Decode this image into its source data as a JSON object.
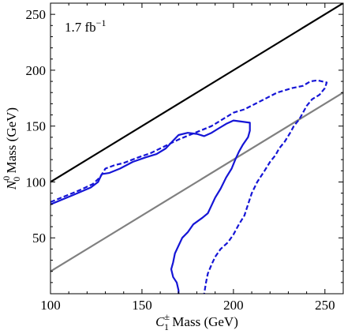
{
  "chart_data": {
    "type": "line",
    "xlabel": {
      "main": "C",
      "sub": "1",
      "sup": "±",
      "rest": " Mass (GeV)"
    },
    "ylabel": {
      "main": "N",
      "sub": "0",
      "sup": "0",
      "rest": " Mass (GeV)"
    },
    "annotation": {
      "text": "1.7 fb",
      "sup": "−1"
    },
    "xlim": [
      100,
      260
    ],
    "ylim": [
      0,
      260
    ],
    "x_ticks": [
      100,
      150,
      200,
      250
    ],
    "y_ticks": [
      50,
      100,
      150,
      200,
      250
    ],
    "grid": false,
    "colors": {
      "black_line": "#000000",
      "gray_line": "#808080",
      "contour": "#1515d6"
    },
    "lines": [
      {
        "id": "black",
        "color": "#000000",
        "points": [
          [
            100,
            100
          ],
          [
            260,
            260
          ]
        ]
      },
      {
        "id": "gray",
        "color": "#808080",
        "points": [
          [
            100,
            20
          ],
          [
            260,
            180
          ]
        ]
      }
    ],
    "series": [
      {
        "id": "solid-contour",
        "style": "solid",
        "color": "#1515d6",
        "points": [
          [
            100,
            80
          ],
          [
            112,
            88
          ],
          [
            122,
            95
          ],
          [
            126,
            100
          ],
          [
            128,
            107
          ],
          [
            132,
            108
          ],
          [
            138,
            112
          ],
          [
            145,
            118
          ],
          [
            152,
            122
          ],
          [
            158,
            125
          ],
          [
            163,
            130
          ],
          [
            167,
            137
          ],
          [
            170,
            142
          ],
          [
            175,
            144
          ],
          [
            180,
            143
          ],
          [
            184,
            141
          ],
          [
            188,
            144
          ],
          [
            192,
            148
          ],
          [
            196,
            152
          ],
          [
            200,
            155
          ],
          [
            209,
            153
          ],
          [
            209,
            146
          ],
          [
            208,
            140
          ],
          [
            205,
            133
          ],
          [
            203,
            127
          ],
          [
            201,
            120
          ],
          [
            199,
            112
          ],
          [
            196,
            104
          ],
          [
            193,
            94
          ],
          [
            190,
            86
          ],
          [
            188,
            79
          ],
          [
            186,
            72
          ],
          [
            183,
            68
          ],
          [
            178,
            62
          ],
          [
            175,
            55
          ],
          [
            172,
            50
          ],
          [
            170,
            43
          ],
          [
            168,
            36
          ],
          [
            167,
            28
          ],
          [
            166,
            22
          ],
          [
            167,
            15
          ],
          [
            169,
            10
          ],
          [
            170,
            3
          ],
          [
            170,
            0
          ]
        ]
      },
      {
        "id": "dashed-contour",
        "style": "dashed",
        "color": "#1515d6",
        "points": [
          [
            100,
            82
          ],
          [
            115,
            92
          ],
          [
            123,
            98
          ],
          [
            127,
            104
          ],
          [
            130,
            112
          ],
          [
            135,
            115
          ],
          [
            140,
            117
          ],
          [
            148,
            122
          ],
          [
            155,
            126
          ],
          [
            160,
            130
          ],
          [
            165,
            134
          ],
          [
            170,
            138
          ],
          [
            176,
            142
          ],
          [
            182,
            146
          ],
          [
            188,
            150
          ],
          [
            194,
            156
          ],
          [
            200,
            162
          ],
          [
            206,
            165
          ],
          [
            212,
            170
          ],
          [
            218,
            175
          ],
          [
            224,
            180
          ],
          [
            232,
            184
          ],
          [
            238,
            186
          ],
          [
            242,
            190
          ],
          [
            246,
            191
          ],
          [
            251,
            189
          ],
          [
            250,
            184
          ],
          [
            247,
            178
          ],
          [
            243,
            174
          ],
          [
            240,
            168
          ],
          [
            238,
            162
          ],
          [
            236,
            156
          ],
          [
            233,
            150
          ],
          [
            231,
            144
          ],
          [
            228,
            136
          ],
          [
            225,
            130
          ],
          [
            223,
            124
          ],
          [
            220,
            118
          ],
          [
            217,
            110
          ],
          [
            213,
            100
          ],
          [
            210,
            90
          ],
          [
            208,
            80
          ],
          [
            206,
            70
          ],
          [
            203,
            62
          ],
          [
            200,
            53
          ],
          [
            197,
            46
          ],
          [
            193,
            40
          ],
          [
            190,
            33
          ],
          [
            188,
            26
          ],
          [
            186,
            18
          ],
          [
            185,
            10
          ],
          [
            184,
            0
          ]
        ]
      }
    ]
  }
}
